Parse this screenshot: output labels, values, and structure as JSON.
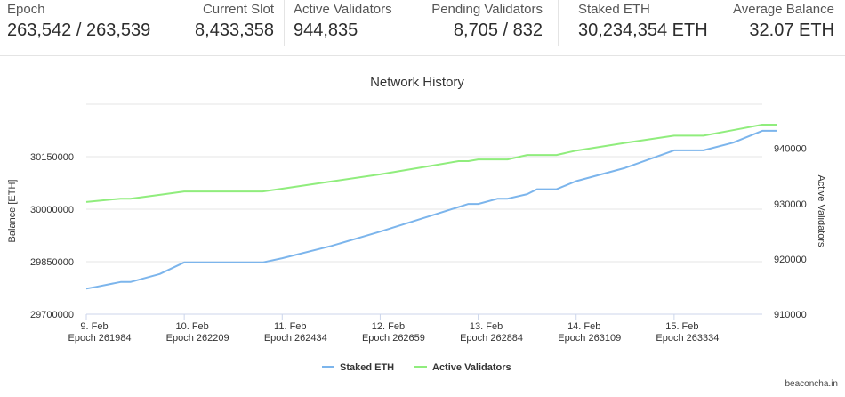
{
  "stats": {
    "epoch": {
      "label": "Epoch",
      "value": "263,542 / 263,539"
    },
    "current_slot": {
      "label": "Current Slot",
      "value": "8,433,358"
    },
    "active_validators": {
      "label": "Active Validators",
      "value": "944,835"
    },
    "pending_validators": {
      "label": "Pending Validators",
      "value": "8,705 / 832"
    },
    "staked_eth": {
      "label": "Staked ETH",
      "value": "30,234,354 ETH"
    },
    "average_balance": {
      "label": "Average Balance",
      "value": "32.07 ETH"
    }
  },
  "credit": "beaconcha.in",
  "chart_data": {
    "type": "line",
    "title": "Network History",
    "grid": true,
    "legend_position": "bottom-center",
    "x_ticks": [
      {
        "line1": "9. Feb",
        "line2": "Epoch 261984",
        "day": 0
      },
      {
        "line1": "10. Feb",
        "line2": "Epoch 262209",
        "day": 1
      },
      {
        "line1": "11. Feb",
        "line2": "Epoch 262434",
        "day": 2
      },
      {
        "line1": "12. Feb",
        "line2": "Epoch 262659",
        "day": 3
      },
      {
        "line1": "13. Feb",
        "line2": "Epoch 262884",
        "day": 4
      },
      {
        "line1": "14. Feb",
        "line2": "Epoch 263109",
        "day": 5
      },
      {
        "line1": "15. Feb",
        "line2": "Epoch 263334",
        "day": 6
      }
    ],
    "xlim": [
      0,
      6.9
    ],
    "y_left": {
      "label": "Balance [ETH]",
      "ticks": [
        29700000,
        29850000,
        30000000,
        30150000
      ],
      "range": [
        29700000,
        30300000
      ]
    },
    "y_right": {
      "label": "Active Validators",
      "ticks": [
        910000,
        920000,
        930000,
        940000
      ],
      "range": [
        910000,
        948000
      ]
    },
    "series": [
      {
        "name": "Staked ETH",
        "axis": "left",
        "color": "#7cb5ec",
        "points": [
          [
            0,
            29773000
          ],
          [
            0.1,
            29778000
          ],
          [
            0.35,
            29792000
          ],
          [
            0.45,
            29792000
          ],
          [
            0.75,
            29815000
          ],
          [
            1.0,
            29848000
          ],
          [
            1.4,
            29848000
          ],
          [
            1.8,
            29848000
          ],
          [
            2.0,
            29860000
          ],
          [
            2.5,
            29895000
          ],
          [
            3.0,
            29936000
          ],
          [
            3.5,
            29980000
          ],
          [
            3.9,
            30015000
          ],
          [
            4.0,
            30015000
          ],
          [
            4.2,
            30030000
          ],
          [
            4.3,
            30030000
          ],
          [
            4.5,
            30043000
          ],
          [
            4.6,
            30057000
          ],
          [
            4.8,
            30057000
          ],
          [
            5.0,
            30080000
          ],
          [
            5.5,
            30118000
          ],
          [
            6.0,
            30168000
          ],
          [
            6.3,
            30168000
          ],
          [
            6.6,
            30190000
          ],
          [
            6.9,
            30224000
          ],
          [
            7.05,
            30224000
          ]
        ]
      },
      {
        "name": "Active Validators",
        "axis": "right",
        "color": "#90ed7d",
        "points": [
          [
            0,
            930300
          ],
          [
            0.35,
            930900
          ],
          [
            0.45,
            930900
          ],
          [
            0.75,
            931600
          ],
          [
            1.0,
            932200
          ],
          [
            1.4,
            932200
          ],
          [
            1.8,
            932200
          ],
          [
            2.0,
            932700
          ],
          [
            2.5,
            934000
          ],
          [
            3.0,
            935300
          ],
          [
            3.5,
            936800
          ],
          [
            3.8,
            937700
          ],
          [
            3.9,
            937700
          ],
          [
            4.0,
            938000
          ],
          [
            4.3,
            938000
          ],
          [
            4.5,
            938800
          ],
          [
            4.8,
            938800
          ],
          [
            5.0,
            939600
          ],
          [
            5.5,
            941000
          ],
          [
            6.0,
            942300
          ],
          [
            6.3,
            942300
          ],
          [
            6.6,
            943300
          ],
          [
            6.9,
            944300
          ],
          [
            7.05,
            944300
          ]
        ]
      }
    ]
  }
}
